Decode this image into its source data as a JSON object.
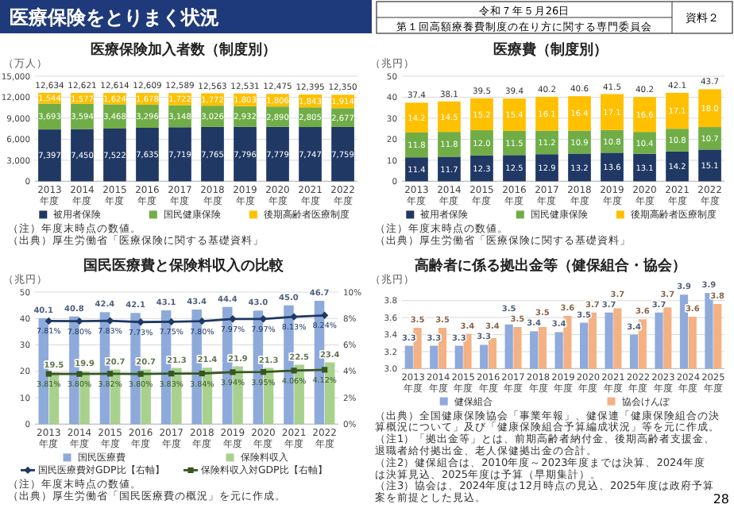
{
  "chart_data": [
    {
      "type": "other",
      "title": "医療保険をとりまく状況",
      "annotations": [
        "令和７年５月26日",
        "第１回高額療養費制度の在り方に関する専門委員会",
        "資料２",
        "28"
      ]
    },
    {
      "type": "bar",
      "title": "医療保険加入者数（制度別）",
      "ylabel": "（万人）",
      "categories": [
        "2013年度",
        "2014年度",
        "2015年度",
        "2016年度",
        "2017年度",
        "2018年度",
        "2019年度",
        "2020年度",
        "2021年度",
        "2022年度"
      ],
      "stacked": true,
      "grid": "y",
      "legend": "bottom",
      "series": [
        {
          "name": "被用者保険",
          "color": "#203864",
          "values": [
            7397,
            7450,
            7522,
            7635,
            7719,
            7765,
            7796,
            7779,
            7747,
            7759
          ],
          "value_labels": [
            "7,397",
            "7,450",
            "7,522",
            "7,635",
            "7,719",
            "7,765",
            "7,796",
            "7,779",
            "7,747",
            "7,759"
          ]
        },
        {
          "name": "国民健康保険",
          "color": "#70ad47",
          "values": [
            3693,
            3594,
            3468,
            3296,
            3148,
            3026,
            2932,
            2890,
            2805,
            2677
          ],
          "value_labels": [
            "3,693",
            "3,594",
            "3,468",
            "3,296",
            "3,148",
            "3,026",
            "2,932",
            "2,890",
            "2,805",
            "2,677"
          ]
        },
        {
          "name": "後期高齢者医療制度",
          "color": "#ffc000",
          "values": [
            1544,
            1577,
            1624,
            1678,
            1722,
            1772,
            1803,
            1806,
            1843,
            1914
          ],
          "value_labels": [
            "1,544",
            "1,577",
            "1,624",
            "1,678",
            "1,722",
            "1,772",
            "1,803",
            "1,806",
            "1,843",
            "1,914"
          ]
        }
      ],
      "totals": [
        "12,634",
        "12,621",
        "12,614",
        "12,609",
        "12,589",
        "12,563",
        "12,531",
        "12,475",
        "12,395",
        "12,350"
      ],
      "ylim": [
        0,
        15000
      ],
      "yticks": [
        0,
        {
          "value": 3000,
          "label": "3,000"
        },
        {
          "value": 6000,
          "label": "6,000"
        },
        {
          "value": 9000,
          "label": "9,000"
        },
        {
          "value": 12000,
          "label": "12,000"
        },
        {
          "value": 15000,
          "label": "15,000"
        }
      ],
      "annotations": [
        "（注）年度末時点の数値。",
        "（出典）厚生労働省「医療保険に関する基礎資料」"
      ]
    },
    {
      "type": "bar",
      "title": "医療費（制度別）",
      "ylabel": "（兆円）",
      "categories": [
        "2013年度",
        "2014年度",
        "2015年度",
        "2016年度",
        "2017年度",
        "2018年度",
        "2019年度",
        "2020年度",
        "2021年度",
        "2022年度"
      ],
      "stacked": true,
      "grid": "y",
      "legend": "bottom",
      "series": [
        {
          "name": "被用者保険",
          "color": "#203864",
          "values": [
            11.4,
            11.7,
            12.3,
            12.5,
            12.9,
            13.2,
            13.6,
            13.1,
            14.2,
            15.1
          ],
          "value_labels": [
            "11.4",
            "11.7",
            "12.3",
            "12.5",
            "12.9",
            "13.2",
            "13.6",
            "13.1",
            "14.2",
            "15.1"
          ]
        },
        {
          "name": "国民健康保険",
          "color": "#70ad47",
          "values": [
            11.8,
            11.8,
            12.0,
            11.5,
            11.2,
            10.9,
            10.8,
            10.4,
            10.8,
            10.7
          ],
          "value_labels": [
            "11.8",
            "11.8",
            "12.0",
            "11.5",
            "11.2",
            "10.9",
            "10.8",
            "10.4",
            "10.8",
            "10.7"
          ]
        },
        {
          "name": "後期高齢者医療制度",
          "color": "#ffc000",
          "values": [
            14.2,
            14.5,
            15.2,
            15.4,
            16.1,
            16.4,
            17.1,
            16.6,
            17.1,
            18.0
          ],
          "value_labels": [
            "14.2",
            "14.5",
            "15.2",
            "15.4",
            "16.1",
            "16.4",
            "17.1",
            "16.6",
            "17.1",
            "18.0"
          ]
        }
      ],
      "totals": [
        "37.4",
        "38.1",
        "39.5",
        "39.4",
        "40.2",
        "40.6",
        "41.5",
        "40.2",
        "42.1",
        "43.7"
      ],
      "ylim": [
        0,
        50
      ],
      "yticks": [
        0,
        10,
        20,
        30,
        40,
        50
      ],
      "annotations": [
        "（注）年度末時点の数値。",
        "（出典）厚生労働省「医療保険に関する基礎資料」"
      ]
    },
    {
      "type": "bar",
      "title": "国民医療費と保険料収入の比較",
      "ylabel": "（兆円）",
      "categories": [
        "2013年度",
        "2014年度",
        "2015年度",
        "2016年度",
        "2017年度",
        "2018年度",
        "2019年度",
        "2020年度",
        "2021年度",
        "2022年度"
      ],
      "grid": "y",
      "legend": "bottom",
      "series": [
        {
          "name": "国民医療費",
          "color": "#8eaadb",
          "values": [
            40.1,
            40.8,
            42.4,
            42.1,
            43.1,
            43.4,
            44.4,
            43.0,
            45.0,
            46.7
          ],
          "value_labels": [
            "40.1",
            "40.8",
            "42.4",
            "42.1",
            "43.1",
            "43.4",
            "44.4",
            "43.0",
            "45.0",
            "46.7"
          ]
        },
        {
          "name": "保険料収入",
          "color": "#a9d18e",
          "values": [
            19.5,
            19.9,
            20.7,
            20.7,
            21.3,
            21.4,
            21.9,
            21.3,
            22.5,
            23.4
          ],
          "value_labels": [
            "19.5",
            "19.9",
            "20.7",
            "20.7",
            "21.3",
            "21.4",
            "21.9",
            "21.3",
            "22.5",
            "23.4"
          ]
        },
        {
          "name": "国民医療費対GDP比【右軸】",
          "type": "line",
          "axis": "y2",
          "marker": "diamond",
          "color": "#1f3864",
          "values": [
            7.81,
            7.8,
            7.83,
            7.73,
            7.75,
            7.8,
            7.97,
            7.97,
            8.13,
            8.24
          ],
          "value_labels": [
            "7.81%",
            "7.80%",
            "7.83%",
            "7.73%",
            "7.75%",
            "7.80%",
            "7.97%",
            "7.97%",
            "8.13%",
            "8.24%"
          ]
        },
        {
          "name": "保険料収入対GDP比【右軸】",
          "type": "line",
          "axis": "y2",
          "marker": "square",
          "color": "#375623",
          "values": [
            3.81,
            3.8,
            3.82,
            3.8,
            3.83,
            3.84,
            3.94,
            3.95,
            4.06,
            4.12
          ],
          "value_labels": [
            "3.81%",
            "3.80%",
            "3.82%",
            "3.80%",
            "3.83%",
            "3.84%",
            "3.94%",
            "3.95%",
            "4.06%",
            "4.12%"
          ]
        }
      ],
      "ylim": [
        0,
        50
      ],
      "yticks": [
        0,
        10,
        20,
        30,
        40,
        50
      ],
      "y2lim": [
        0,
        10
      ],
      "y2ticks": [
        {
          "value": 0,
          "label": "0%"
        },
        {
          "value": 2,
          "label": "2%"
        },
        {
          "value": 4,
          "label": "4%"
        },
        {
          "value": 6,
          "label": "6%"
        },
        {
          "value": 8,
          "label": "8%"
        },
        {
          "value": 10,
          "label": "10%"
        }
      ],
      "annotations": [
        "（注）年度末時点の数値。",
        "（出典）厚生労働省「国民医療費の概況」を元に作成。"
      ]
    },
    {
      "type": "bar",
      "title": "高齢者に係る拠出金等（健保組合・協会）",
      "ylabel": "（兆円）",
      "categories": [
        "2013年度",
        "2014年度",
        "2015年度",
        "2016年度",
        "2017年度",
        "2018年度",
        "2019年度",
        "2020年度",
        "2021年度",
        "2022年度",
        "2023年度",
        "2024年度",
        "2025年度"
      ],
      "grid": "y",
      "legend": "bottom",
      "series": [
        {
          "name": "健保組合",
          "color": "#8faadc",
          "values": [
            3.27,
            3.27,
            3.27,
            3.28,
            3.52,
            3.44,
            3.43,
            3.54,
            3.66,
            3.4,
            3.66,
            3.87,
            3.89
          ],
          "value_labels": [
            "3.3",
            "3.3",
            "3.3",
            "3.3",
            "3.5",
            "3.4",
            "3.4",
            "3.5",
            "3.7",
            "3.4",
            "3.7",
            "3.9",
            "3.9"
          ]
        },
        {
          "name": "協会けんぽ",
          "color": "#f4b183",
          "values": [
            3.48,
            3.48,
            3.41,
            3.36,
            3.49,
            3.49,
            3.62,
            3.66,
            3.71,
            3.58,
            3.72,
            3.61,
            3.76
          ],
          "value_labels": [
            "3.5",
            "3.5",
            "3.4",
            "3.4",
            "3.5",
            "3.5",
            "3.6",
            "3.7",
            "3.7",
            "3.6",
            "3.7",
            "3.6",
            "3.8"
          ]
        }
      ],
      "ylim": [
        3.0,
        3.9
      ],
      "yticks": [
        {
          "value": 3,
          "label": "3.0"
        },
        3.2,
        3.4,
        3.6,
        3.8
      ],
      "annotations": [
        "（出典）全国健康保険協会「事業年報」、健保連「健康保険組合の決算概況について」及び「健康保険組合予算編成状況」等を元に作成。",
        "（注1）「拠出金等」とは、前期高齢者納付金、後期高齢者支援金、退職者給付拠出金、老人保健拠出金の合計。",
        "（注2）健保組合は、2010年度～2023年度までは決算、2024年度は決算見込、2025年度は予算（早期集計）。",
        "（注3）協会は、2024年度は12月時点の見込、2025年度は政府予算案を前提とした見込。"
      ]
    }
  ]
}
